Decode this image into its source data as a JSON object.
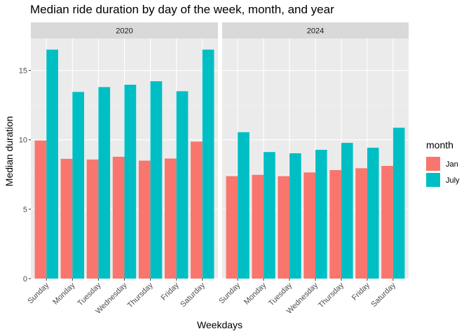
{
  "chart_data": {
    "type": "bar",
    "title": "Median ride duration by day of the week, month, and year",
    "xlabel": "Weekdays",
    "ylabel": "Median duration",
    "ylim": [
      0,
      17.3
    ],
    "yticks": [
      "0",
      "5",
      "10",
      "15"
    ],
    "categories": [
      "Sunday",
      "Monday",
      "Tuesday",
      "Wednesday",
      "Thursday",
      "Friday",
      "Saturday"
    ],
    "legend": {
      "title": "month",
      "position": "right"
    },
    "grid": true,
    "facets": [
      {
        "label": "2020",
        "series": [
          {
            "name": "Jan",
            "color": "#F8766D",
            "values": [
              9.95,
              8.63,
              8.58,
              8.78,
              8.5,
              8.65,
              9.87
            ]
          },
          {
            "name": "July",
            "color": "#00BFC4",
            "values": [
              16.5,
              13.45,
              13.8,
              13.97,
              14.22,
              13.5,
              16.5
            ]
          }
        ]
      },
      {
        "label": "2024",
        "series": [
          {
            "name": "Jan",
            "color": "#F8766D",
            "values": [
              7.38,
              7.48,
              7.38,
              7.65,
              7.82,
              7.95,
              8.12
            ]
          },
          {
            "name": "July",
            "color": "#00BFC4",
            "values": [
              10.55,
              9.12,
              9.03,
              9.28,
              9.78,
              9.43,
              10.87
            ]
          }
        ]
      }
    ]
  }
}
